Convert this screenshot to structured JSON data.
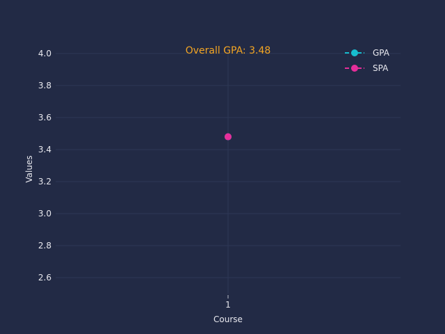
{
  "chart_data": {
    "type": "line",
    "x": [
      1
    ],
    "series": [
      {
        "name": "GPA",
        "values": [
          3.48
        ],
        "color": "#17becf",
        "marker": "circle",
        "linestyle": "dashed"
      },
      {
        "name": "SPA",
        "values": [
          3.48
        ],
        "color": "#e62e9a",
        "marker": "circle",
        "linestyle": "dashed"
      }
    ],
    "annotation": "Overall GPA: 3.48",
    "xlabel": "Course",
    "ylabel": "Values",
    "xticks": [
      "1"
    ],
    "yticks": [
      "2.6",
      "2.8",
      "3.0",
      "3.2",
      "3.4",
      "3.6",
      "3.8",
      "4.0"
    ],
    "ylim": [
      2.5,
      4.03
    ],
    "xlim": [
      0.5,
      1.5
    ],
    "grid": true,
    "legend_position": "top-right",
    "background_color": "#222a45",
    "grid_color": "#2e3856"
  }
}
